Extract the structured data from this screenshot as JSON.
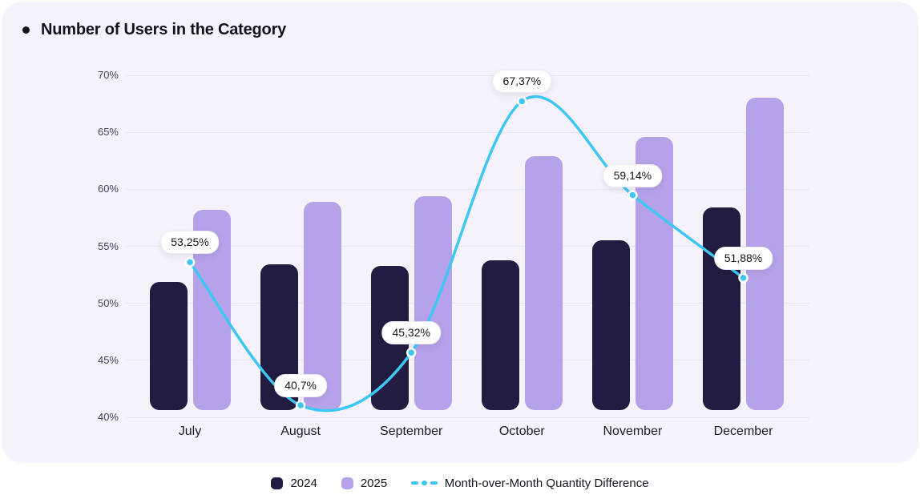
{
  "chart_data": {
    "type": "bar",
    "title": "Number of Users in the Category",
    "categories": [
      "July",
      "August",
      "September",
      "October",
      "November",
      "December"
    ],
    "series": [
      {
        "name": "2024",
        "values": [
          51.9,
          53.4,
          53.3,
          53.8,
          55.5,
          58.4
        ],
        "color": "#211C40"
      },
      {
        "name": "2025",
        "values": [
          58.2,
          58.9,
          59.4,
          62.9,
          64.6,
          68.0
        ],
        "color": "#B5A2E9"
      }
    ],
    "line_series": {
      "name": "Month-over-Month Quantity Difference",
      "values": [
        53.25,
        40.7,
        45.32,
        67.37,
        59.14,
        51.88
      ],
      "labels": [
        "53,25%",
        "40,7%",
        "45,32%",
        "67,37%",
        "59,14%",
        "51,88%"
      ],
      "color": "#3EC7F2"
    },
    "ylim": [
      40,
      70
    ],
    "ytick_step": 5,
    "yticks": [
      "70%",
      "65%",
      "60%",
      "55%",
      "50%",
      "45%",
      "40%"
    ],
    "grid": true,
    "legend_position": "bottom",
    "colors": {
      "card_background": "#F5F2FB",
      "page_background": "#FFFFFF",
      "gridline": "#E8E4F3",
      "axis_text": "#47425E",
      "category_text": "#1D1A28",
      "title_text": "#15121E",
      "label_pill_background": "#FFFFFF"
    }
  }
}
